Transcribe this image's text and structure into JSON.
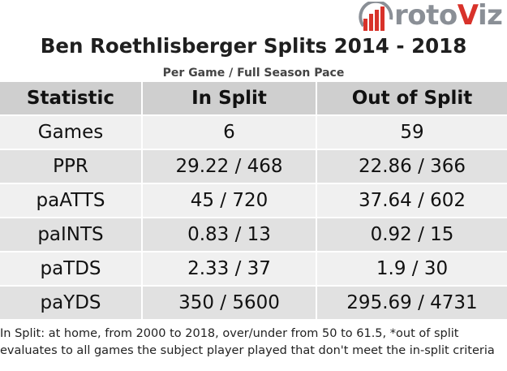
{
  "logo": {
    "text_main": "roto",
    "text_accent": "V",
    "text_end": "iz",
    "colors": {
      "red": "#d8322a",
      "gray": "#8a8f96"
    }
  },
  "title": "Ben Roethlisberger Splits 2014 - 2018",
  "subtitle": "Per Game / Full Season Pace",
  "table": {
    "headers": [
      "Statistic",
      "In Split",
      "Out of Split"
    ],
    "rows": [
      [
        "Games",
        "6",
        "59"
      ],
      [
        "PPR",
        "29.22 / 468",
        "22.86 / 366"
      ],
      [
        "paATTS",
        "45 / 720",
        "37.64 / 602"
      ],
      [
        "paINTS",
        "0.83 / 13",
        "0.92 / 15"
      ],
      [
        "paTDS",
        "2.33 / 37",
        "1.9 / 30"
      ],
      [
        "paYDS",
        "350 / 5600",
        "295.69 / 4731"
      ]
    ]
  },
  "footnote": "In Split: at home, from 2000 to 2018, over/under from 50 to 61.5,  *out of split evaluates to all games the subject player played that don't meet the in-split criteria"
}
